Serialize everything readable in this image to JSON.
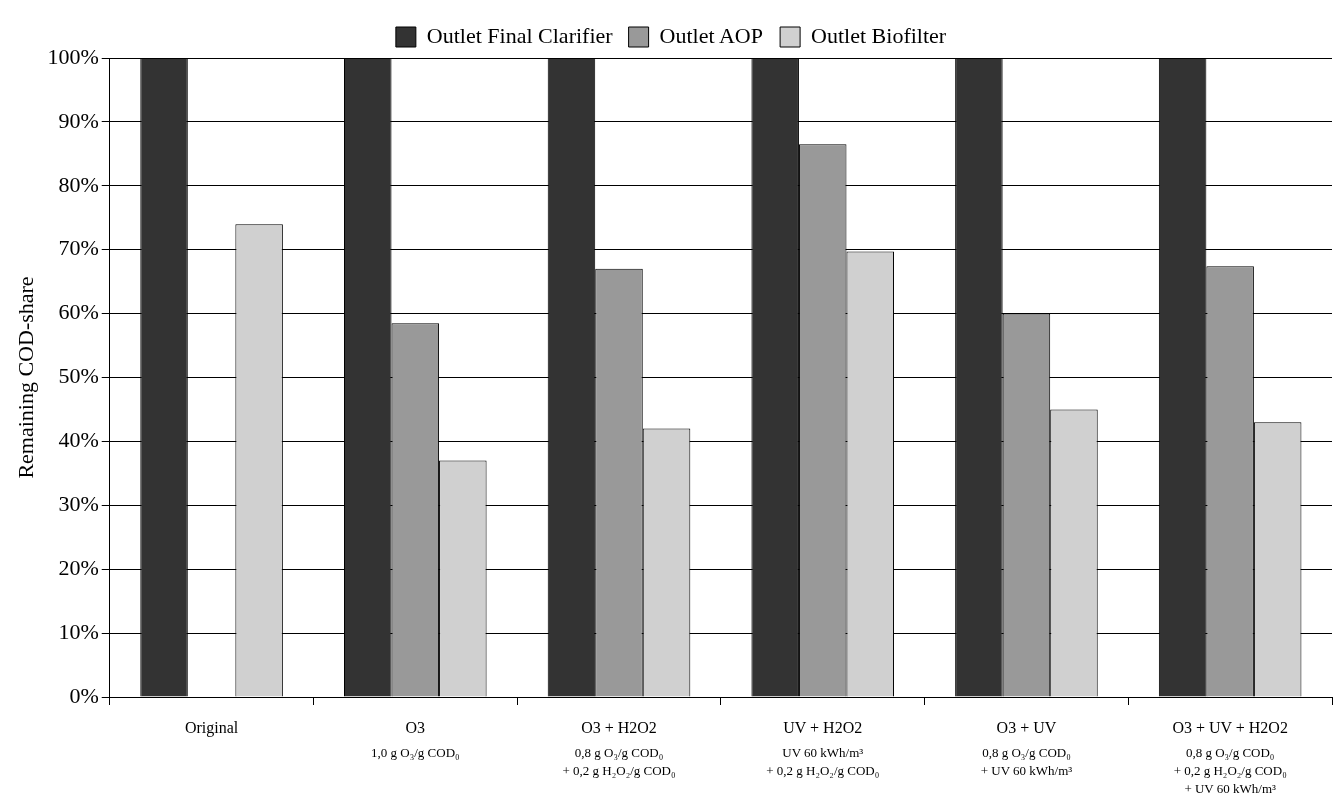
{
  "chart_data": {
    "type": "bar",
    "ylabel": "Remaining COD-share",
    "categories": [
      "Original",
      "O3\n1,0 g O₃/g COD₀",
      "O3 + H2O2\n0,8 g O₃/g COD₀\n+ 0,2 g H₂O₂/g COD₀",
      "UV + H2O2\nUV 60 kWh/m³\n+ 0,2 g H₂O₂/g COD₀",
      "O3 + UV\n0,8 g O₃/g COD₀\n+ UV 60 kWh/m³",
      "O3 + UV + H2O2\n0,8 g O₃/g COD₀\n+ 0,2 g H₂O₂/g COD₀\n+ UV 60 kWh/m³"
    ],
    "series": [
      {
        "name": "Outlet Final Clarifier",
        "color": "#333333",
        "values": [
          100,
          100,
          100,
          100,
          100,
          100
        ]
      },
      {
        "name": "Outlet AOP",
        "color": "#999999",
        "values": [
          null,
          58.5,
          67,
          86.5,
          60,
          67.4
        ]
      },
      {
        "name": "Outlet Biofilter",
        "color": "#d0d0d0",
        "values": [
          74,
          37,
          42,
          69.7,
          45,
          43
        ]
      }
    ],
    "ylim": [
      0,
      100
    ],
    "yticks": [
      {
        "value": 0,
        "label": "0%"
      },
      {
        "value": 10,
        "label": "10%"
      },
      {
        "value": 20,
        "label": "20%"
      },
      {
        "value": 30,
        "label": "30%"
      },
      {
        "value": 40,
        "label": "40%"
      },
      {
        "value": 50,
        "label": "50%"
      },
      {
        "value": 60,
        "label": "60%"
      },
      {
        "value": 70,
        "label": "70%"
      },
      {
        "value": 80,
        "label": "80%"
      },
      {
        "value": 90,
        "label": "90%"
      },
      {
        "value": 100,
        "label": "100%"
      }
    ],
    "grid": "y",
    "legend": "top"
  }
}
